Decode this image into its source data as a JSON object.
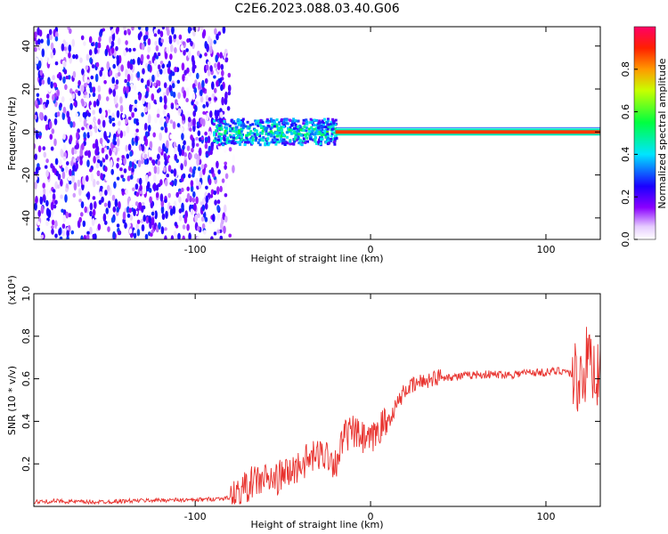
{
  "title": "C2E6.2023.088.03.40.G06",
  "chart_data": [
    {
      "type": "heatmap",
      "title": "",
      "xlabel": "Height of straight line (km)",
      "ylabel": "Frequency (Hz)",
      "xlim": [
        -192,
        131
      ],
      "ylim": [
        -50,
        49
      ],
      "xticks": [
        -100,
        0,
        100
      ],
      "xtick_labels": [
        "-100",
        "0",
        "100"
      ],
      "yticks": [
        -40,
        -20,
        0,
        20,
        40
      ],
      "ytick_labels": [
        "-40",
        "-20",
        "0",
        "20",
        "40"
      ],
      "colorbar": {
        "label": "Normalized spectral amplitude",
        "range": [
          0,
          1
        ],
        "ticks": [
          0.0,
          0.2,
          0.4,
          0.6,
          0.8
        ],
        "tick_labels": [
          "0.0",
          "0.2",
          "0.4",
          "0.6",
          "0.8"
        ],
        "colormap": [
          "#ffffff",
          "#e0c8ff",
          "#7a00ff",
          "#0000ff",
          "#00e5ff",
          "#00ff40",
          "#ffff00",
          "#ff8000",
          "#ff0000",
          "#ff0066"
        ]
      },
      "regions": [
        {
          "x_range": [
            -192,
            -82
          ],
          "description": "broadband noise, amplitude 0.0-0.3 across all frequencies",
          "freq_range": [
            -50,
            49
          ],
          "amplitude": [
            0.0,
            0.3
          ]
        },
        {
          "x_range": [
            -90,
            -20
          ],
          "description": "signal near 0 Hz, width ~ +/-6 Hz",
          "center_hz": 0,
          "amplitude": [
            0.3,
            0.6
          ]
        },
        {
          "x_range": [
            -20,
            131
          ],
          "description": "narrow strong line at 0 Hz",
          "center_hz": 0,
          "amplitude": [
            0.8,
            1.0
          ]
        }
      ],
      "grid": false
    },
    {
      "type": "line",
      "title": "",
      "xlabel": "Height of straight line (km)",
      "ylabel": "SNR (10 * v/v)",
      "y_multiplier": "(x10⁴)",
      "xlim": [
        -192,
        131
      ],
      "ylim": [
        0,
        1.0
      ],
      "xticks": [
        -100,
        0,
        100
      ],
      "xtick_labels": [
        "-100",
        "0",
        "100"
      ],
      "yticks": [
        0.2,
        0.4,
        0.6,
        0.8,
        1.0
      ],
      "ytick_labels": [
        "0.2",
        "0.4",
        "0.6",
        "0.8",
        "1.0"
      ],
      "color": "#e8322e",
      "series": [
        {
          "x": [
            -192,
            -180,
            -160,
            -140,
            -120,
            -100,
            -90,
            -80,
            -75,
            -70,
            -65,
            -60,
            -55,
            -50,
            -45,
            -40,
            -35,
            -30,
            -25,
            -20,
            -15,
            -10,
            -5,
            0,
            5,
            10,
            15,
            20,
            25,
            30,
            40,
            50,
            60,
            70,
            80,
            90,
            100,
            110,
            115,
            118,
            120,
            122,
            125,
            128,
            131
          ],
          "y": [
            0.02,
            0.025,
            0.02,
            0.025,
            0.03,
            0.03,
            0.035,
            0.04,
            0.06,
            0.1,
            0.12,
            0.13,
            0.12,
            0.15,
            0.16,
            0.2,
            0.22,
            0.24,
            0.25,
            0.2,
            0.33,
            0.35,
            0.32,
            0.3,
            0.37,
            0.4,
            0.48,
            0.55,
            0.57,
            0.59,
            0.61,
            0.61,
            0.62,
            0.62,
            0.62,
            0.63,
            0.63,
            0.64,
            0.62,
            0.6,
            0.62,
            0.65,
            0.7,
            0.64,
            0.62
          ]
        }
      ],
      "grid": false
    }
  ]
}
